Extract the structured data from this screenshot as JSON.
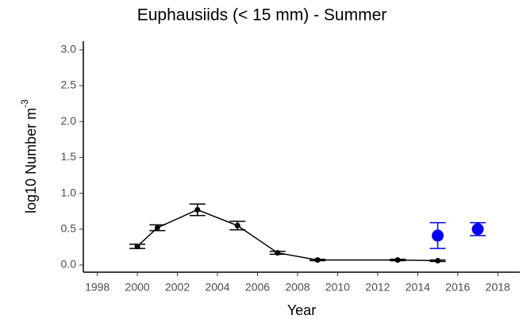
{
  "chart_data": {
    "type": "line",
    "title": "Euphausiids (< 15 mm) -  Summer",
    "x_label": "Year",
    "y_label": "log10 Number m",
    "y_label_superscript": "-3",
    "xlim": [
      1997.3,
      2019.1
    ],
    "xticks": [
      1998,
      2000,
      2002,
      2004,
      2006,
      2008,
      2010,
      2012,
      2014,
      2016,
      2018
    ],
    "ylim": [
      -0.1,
      3.12
    ],
    "yticks": [
      {
        "value": 0,
        "label": "0.0"
      },
      0.5,
      {
        "value": 1,
        "label": "1.0"
      },
      1.5,
      {
        "value": 2,
        "label": "2.0"
      },
      2.5,
      {
        "value": 3,
        "label": "3.0"
      }
    ],
    "grid": false,
    "series": [
      {
        "color": "#000000",
        "line": true,
        "x": [
          2000,
          2001,
          2003,
          2005,
          2007,
          2009,
          2013,
          2015
        ],
        "values": [
          0.26,
          0.52,
          0.77,
          0.55,
          0.17,
          0.07,
          0.07,
          0.06
        ],
        "errors": [
          0.03,
          0.04,
          0.08,
          0.06,
          0.02,
          0.01,
          0.01,
          0.01
        ]
      },
      {
        "color": "#0000ee",
        "line": false,
        "x": [
          2015,
          2017
        ],
        "values": [
          0.41,
          0.5
        ],
        "errors": [
          0.18,
          0.09
        ]
      }
    ]
  }
}
